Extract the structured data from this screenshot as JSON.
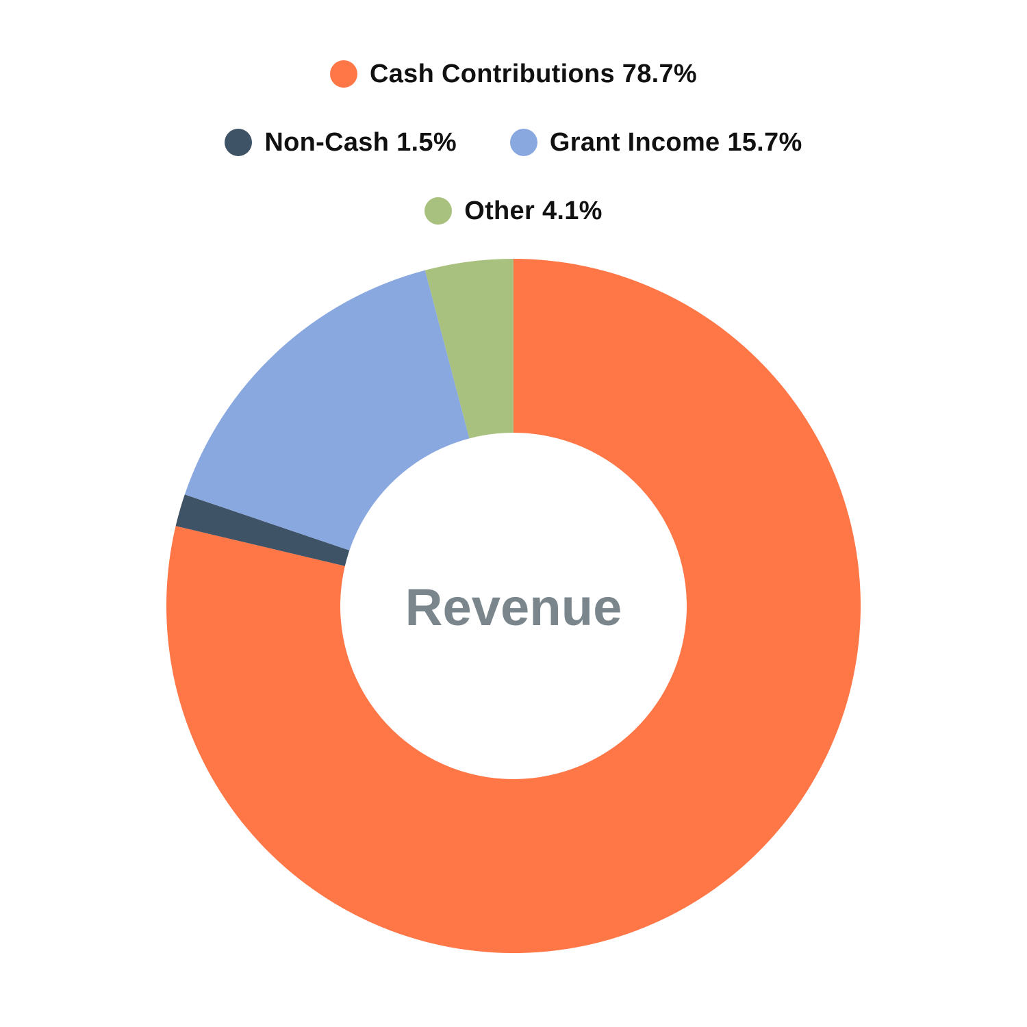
{
  "chart_data": {
    "type": "pie",
    "variant": "donut",
    "title": "Revenue",
    "categories": [
      "Cash Contributions",
      "Non-Cash",
      "Grant Income",
      "Other"
    ],
    "values": [
      78.7,
      1.5,
      15.7,
      4.1
    ],
    "unit": "%",
    "legend_entries": [
      "Cash Contributions 78.7%",
      "Non-Cash 1.5%",
      "Grant Income 15.7%",
      "Other 4.1%"
    ],
    "colors": [
      "#ff7647",
      "#3e5366",
      "#89a8e0",
      "#a9c17f"
    ],
    "legend_placement": "top-center",
    "start_angle": "12 o'clock",
    "direction": "clockwise",
    "center_label_color": "#7a868c"
  }
}
